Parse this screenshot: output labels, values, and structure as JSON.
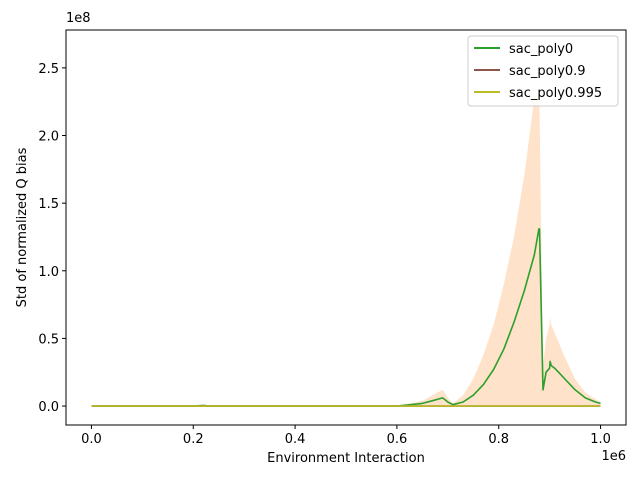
{
  "chart_data": {
    "type": "line",
    "title": "",
    "xlabel": "Environment Interaction",
    "ylabel": "Std of normalized Q bias",
    "x_offset_label": "1e6",
    "y_offset_label": "1e8",
    "xlim": [
      -0.05,
      1.05
    ],
    "ylim": [
      -0.14,
      2.78
    ],
    "x_ticks": [
      0.0,
      0.2,
      0.4,
      0.6,
      0.8,
      1.0
    ],
    "x_tick_labels": [
      "0.0",
      "0.2",
      "0.4",
      "0.6",
      "0.8",
      "1.0"
    ],
    "y_ticks": [
      0.0,
      0.5,
      1.0,
      1.5,
      2.0,
      2.5
    ],
    "y_tick_labels": [
      "0.0",
      "0.5",
      "1.0",
      "1.5",
      "2.0",
      "2.5"
    ],
    "grid": false,
    "legend_position": "top-right",
    "series": [
      {
        "name": "sac_poly0",
        "color": "#2ca02c",
        "band_color": "#ffdfc4",
        "x": [
          0.0,
          0.1,
          0.2,
          0.22,
          0.23,
          0.25,
          0.3,
          0.5,
          0.6,
          0.65,
          0.67,
          0.69,
          0.7,
          0.71,
          0.73,
          0.75,
          0.77,
          0.79,
          0.81,
          0.83,
          0.85,
          0.87,
          0.879,
          0.88,
          0.887,
          0.893,
          0.9,
          0.901,
          0.903,
          0.91,
          0.92,
          0.93,
          0.95,
          0.97,
          0.99,
          1.0
        ],
        "y": [
          0.0,
          0.0,
          0.0,
          0.005,
          0.0,
          0.0,
          0.0,
          0.0,
          0.0,
          0.02,
          0.04,
          0.06,
          0.03,
          0.01,
          0.03,
          0.08,
          0.16,
          0.27,
          0.42,
          0.62,
          0.85,
          1.12,
          1.31,
          1.31,
          0.12,
          0.25,
          0.28,
          0.33,
          0.3,
          0.28,
          0.24,
          0.2,
          0.12,
          0.06,
          0.03,
          0.02
        ],
        "y_lower": [
          0.0,
          0.0,
          0.0,
          0.0,
          0.0,
          0.0,
          0.0,
          0.0,
          0.0,
          0.0,
          0.0,
          0.0,
          0.0,
          0.0,
          0.0,
          0.0,
          0.0,
          0.0,
          0.0,
          0.0,
          0.0,
          0.0,
          0.0,
          0.0,
          0.0,
          0.0,
          0.0,
          0.0,
          0.0,
          0.0,
          0.0,
          0.0,
          0.0,
          0.0,
          0.0,
          0.0
        ],
        "y_upper": [
          0.0,
          0.0,
          0.0,
          0.01,
          0.0,
          0.0,
          0.0,
          0.0,
          0.0,
          0.04,
          0.08,
          0.12,
          0.06,
          0.02,
          0.08,
          0.2,
          0.38,
          0.6,
          0.9,
          1.25,
          1.7,
          2.28,
          2.28,
          2.2,
          0.3,
          0.5,
          0.6,
          0.66,
          0.6,
          0.54,
          0.45,
          0.36,
          0.2,
          0.1,
          0.05,
          0.03
        ]
      },
      {
        "name": "sac_poly0.9",
        "color": "#8c564b",
        "x": [
          0.0,
          1.0
        ],
        "y": [
          0.0,
          0.0
        ]
      },
      {
        "name": "sac_poly0.995",
        "color": "#bcbd22",
        "x": [
          0.0,
          1.0
        ],
        "y": [
          0.0,
          0.0
        ]
      }
    ]
  }
}
